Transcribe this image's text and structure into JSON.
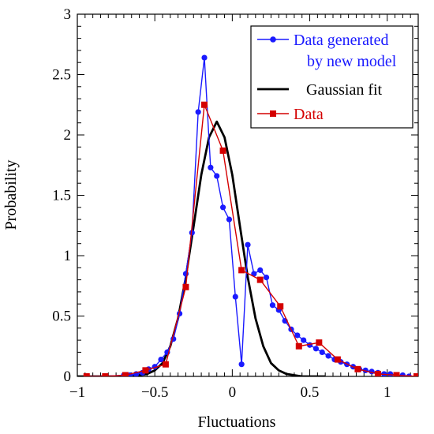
{
  "chart_data": {
    "type": "line",
    "xlabel": "Fluctuations",
    "ylabel": "Probability",
    "xlim": [
      -1,
      1.2
    ],
    "ylim": [
      0,
      3
    ],
    "grid": false,
    "legend_position": "top-right",
    "x_ticks": [
      -1,
      -0.5,
      0,
      0.5,
      1
    ],
    "x_tick_labels": [
      "−1",
      "−0.5",
      "0",
      "0.5",
      "1"
    ],
    "y_ticks": [
      0,
      0.5,
      1,
      1.5,
      2,
      2.5,
      3
    ],
    "y_tick_labels": [
      "0",
      "0.5",
      "1",
      "1.5",
      "2",
      "2.5",
      "3"
    ],
    "series": [
      {
        "name": "Data generated by new model",
        "legend_lines": [
          "Data generated",
          "by new model"
        ],
        "color": "#1a1aff",
        "marker": "circle",
        "x": [
          -0.94,
          -0.82,
          -0.7,
          -0.66,
          -0.62,
          -0.58,
          -0.54,
          -0.5,
          -0.46,
          -0.42,
          -0.38,
          -0.34,
          -0.3,
          -0.26,
          -0.22,
          -0.18,
          -0.14,
          -0.1,
          -0.06,
          -0.02,
          0.02,
          0.06,
          0.1,
          0.14,
          0.18,
          0.22,
          0.26,
          0.3,
          0.34,
          0.38,
          0.42,
          0.46,
          0.5,
          0.54,
          0.58,
          0.62,
          0.66,
          0.7,
          0.74,
          0.78,
          0.82,
          0.86,
          0.9,
          0.94,
          0.98,
          1.02,
          1.06,
          1.1,
          1.14
        ],
        "y": [
          0.0,
          0.0,
          0.01,
          0.01,
          0.02,
          0.03,
          0.06,
          0.08,
          0.14,
          0.2,
          0.31,
          0.52,
          0.85,
          1.19,
          2.19,
          2.64,
          1.73,
          1.66,
          1.4,
          1.3,
          0.66,
          0.1,
          1.09,
          0.85,
          0.88,
          0.82,
          0.59,
          0.55,
          0.46,
          0.39,
          0.34,
          0.3,
          0.26,
          0.23,
          0.2,
          0.17,
          0.14,
          0.12,
          0.1,
          0.08,
          0.06,
          0.05,
          0.04,
          0.03,
          0.02,
          0.02,
          0.01,
          0.01,
          0.0
        ]
      },
      {
        "name": "Gaussian fit",
        "legend_lines": [
          "Gaussian fit"
        ],
        "color": "#000000",
        "marker": "none",
        "x": [
          -1.0,
          -0.95,
          -0.9,
          -0.85,
          -0.8,
          -0.75,
          -0.7,
          -0.65,
          -0.6,
          -0.55,
          -0.5,
          -0.45,
          -0.4,
          -0.35,
          -0.3,
          -0.25,
          -0.2,
          -0.15,
          -0.1,
          -0.05,
          0.0,
          0.05,
          0.1,
          0.15,
          0.2,
          0.25,
          0.3,
          0.35,
          0.4,
          0.45,
          0.5,
          0.55,
          0.6
        ],
        "y": [
          0.0,
          0.0,
          0.0,
          0.0,
          0.0,
          0.0,
          0.0,
          0.0,
          0.01,
          0.02,
          0.05,
          0.11,
          0.25,
          0.48,
          0.82,
          1.24,
          1.67,
          1.98,
          2.11,
          1.98,
          1.67,
          1.24,
          0.82,
          0.48,
          0.25,
          0.11,
          0.05,
          0.02,
          0.01,
          0.0,
          0.0,
          0.0,
          0.0
        ]
      },
      {
        "name": "Data",
        "legend_lines": [
          "Data"
        ],
        "color": "#d40000",
        "marker": "square",
        "x": [
          -0.94,
          -0.82,
          -0.69,
          -0.56,
          -0.43,
          -0.3,
          -0.18,
          -0.06,
          0.06,
          0.18,
          0.31,
          0.43,
          0.56,
          0.68,
          0.81,
          0.94,
          1.06,
          1.19
        ],
        "y": [
          0.0,
          0.0,
          0.01,
          0.05,
          0.1,
          0.74,
          2.25,
          1.87,
          0.88,
          0.8,
          0.58,
          0.25,
          0.28,
          0.14,
          0.06,
          0.02,
          0.01,
          0.0
        ]
      }
    ]
  }
}
